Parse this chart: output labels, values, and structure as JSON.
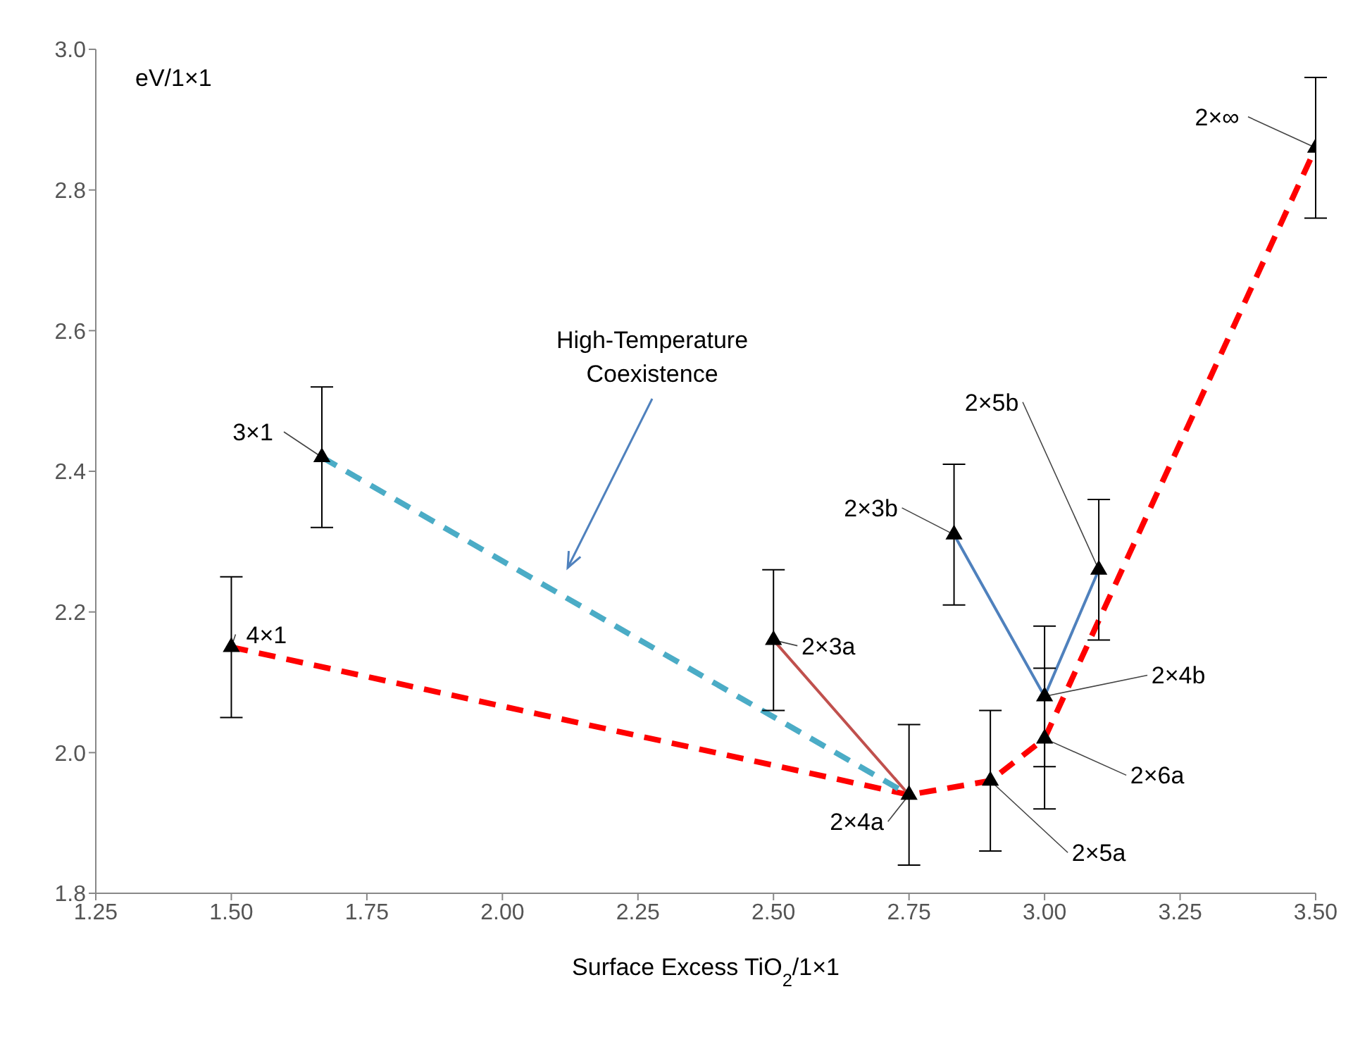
{
  "chart_data": {
    "type": "line",
    "xlabel": "Surface Excess TiO$_{2}$/1×1",
    "ylabel": "eV/1×1",
    "xlim": [
      1.25,
      3.5
    ],
    "xticks": [
      {
        "value": 1.25,
        "label": "1.25"
      },
      {
        "value": 1.5,
        "label": "1.50"
      },
      {
        "value": 1.75,
        "label": "1.75"
      },
      {
        "value": 2,
        "label": "2.00"
      },
      {
        "value": 2.25,
        "label": "2.25"
      },
      {
        "value": 2.5,
        "label": "2.50"
      },
      {
        "value": 2.75,
        "label": "2.75"
      },
      {
        "value": 3,
        "label": "3.00"
      },
      {
        "value": 3.25,
        "label": "3.25"
      },
      {
        "value": 3.5,
        "label": "3.50"
      }
    ],
    "ylim": [
      1.8,
      3.0
    ],
    "yticks": [
      {
        "value": 1.8,
        "label": "1.8"
      },
      {
        "value": 2,
        "label": "2.0"
      },
      {
        "value": 2.2,
        "label": "2.2"
      },
      {
        "value": 2.4,
        "label": "2.4"
      },
      {
        "value": 2.6,
        "label": "2.6"
      },
      {
        "value": 2.8,
        "label": "2.8"
      },
      {
        "value": 3,
        "label": "3.0"
      }
    ],
    "series": [
      {
        "color": "#ff0000",
        "line_style": "dashed",
        "marker": "none",
        "x": [
          1.5,
          2.75,
          2.9,
          3.0,
          3.5
        ],
        "values": [
          2.15,
          1.94,
          1.96,
          2.02,
          2.86
        ]
      },
      {
        "color": "#4bacc6",
        "line_style": "dashed",
        "marker": "none",
        "x": [
          1.667,
          2.75
        ],
        "values": [
          2.42,
          1.94
        ]
      },
      {
        "color": "#c0504d",
        "line_style": "solid",
        "marker": "none",
        "x": [
          2.5,
          2.75
        ],
        "values": [
          2.16,
          1.94
        ]
      },
      {
        "color": "#4f81bd",
        "line_style": "solid",
        "marker": "none",
        "x": [
          2.833,
          3.0,
          3.1
        ],
        "values": [
          2.31,
          2.08,
          2.26
        ]
      },
      {
        "type": "scatter",
        "color": "#000000",
        "marker": "triangle",
        "x": [
          1.5,
          1.667,
          2.5,
          2.75,
          2.9,
          3.0,
          3.0,
          2.833,
          3.1,
          3.5
        ],
        "values": [
          2.15,
          2.42,
          2.16,
          1.94,
          1.96,
          2.02,
          2.08,
          2.31,
          2.26,
          2.86
        ],
        "errors": [
          0.1,
          0.1,
          0.1,
          0.1,
          0.1,
          0.1,
          0.1,
          0.1,
          0.1,
          0.1
        ]
      }
    ],
    "annotations": [
      {
        "text": "4×1",
        "x": 1.5,
        "y": 2.15
      },
      {
        "text": "3×1",
        "x": 1.667,
        "y": 2.42
      },
      {
        "text": "2×3a",
        "x": 2.5,
        "y": 2.16
      },
      {
        "text": "2×4a",
        "x": 2.75,
        "y": 1.94
      },
      {
        "text": "2×5a",
        "x": 2.9,
        "y": 1.96
      },
      {
        "text": "2×6a",
        "x": 3.0,
        "y": 2.02
      },
      {
        "text": "2×4b",
        "x": 3.0,
        "y": 2.08
      },
      {
        "text": "2×3b",
        "x": 2.833,
        "y": 2.31
      },
      {
        "text": "2×5b",
        "x": 3.1,
        "y": 2.26
      },
      {
        "text": "2×∞",
        "x": 3.5,
        "y": 2.86
      },
      "High-Temperature Coexistence"
    ]
  }
}
